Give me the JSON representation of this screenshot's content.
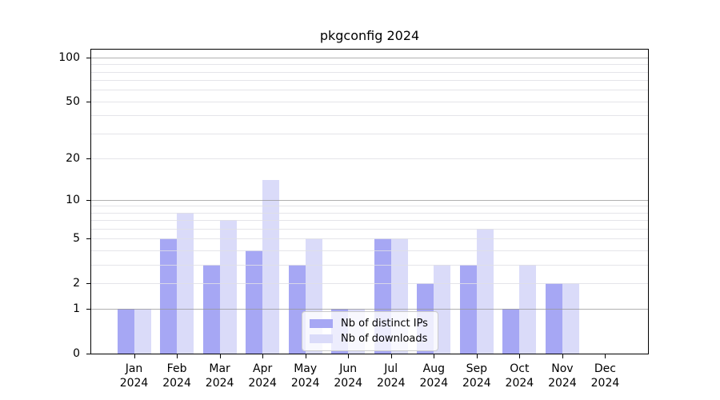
{
  "chart_data": {
    "type": "bar",
    "title": "pkgconfig 2024",
    "categories": [
      "Jan 2024",
      "Feb 2024",
      "Mar 2024",
      "Apr 2024",
      "May 2024",
      "Jun 2024",
      "Jul 2024",
      "Aug 2024",
      "Sep 2024",
      "Oct 2024",
      "Nov 2024",
      "Dec 2024"
    ],
    "x_tick_month": [
      "Jan",
      "Feb",
      "Mar",
      "Apr",
      "May",
      "Jun",
      "Jul",
      "Aug",
      "Sep",
      "Oct",
      "Nov",
      "Dec"
    ],
    "x_tick_year": "2024",
    "series": [
      {
        "name": "Nb of distinct IPs",
        "color": "#a6a7f4",
        "values": [
          1,
          5,
          3,
          4,
          3,
          1,
          5,
          2,
          3,
          1,
          2,
          0
        ]
      },
      {
        "name": "Nb of downloads",
        "color": "#dadbf9",
        "values": [
          1,
          8,
          7,
          14,
          5,
          1,
          5,
          3,
          6,
          3,
          2,
          0
        ]
      }
    ],
    "y_axis": {
      "scale": "log1p",
      "min": 0,
      "max": 113.3,
      "tick_labels": [
        100,
        50,
        20,
        10,
        5,
        2,
        1,
        0
      ],
      "major_gridlines": [
        1,
        10,
        100
      ],
      "minor_gridlines": [
        2,
        3,
        4,
        5,
        6,
        7,
        8,
        9,
        20,
        30,
        40,
        50,
        60,
        70,
        80,
        90
      ]
    },
    "xlabel": "",
    "ylabel": "",
    "grid": true,
    "legend": {
      "position": "lower center",
      "entries": [
        "Nb of distinct IPs",
        "Nb of downloads"
      ]
    }
  },
  "colors": {
    "background": "#ffffff",
    "bar_distinct_ips": "#a6a7f4",
    "bar_downloads": "#dadbf9",
    "major_grid": "#a8a8a8",
    "minor_grid": "#e6e6ec",
    "axis": "#000000",
    "legend_border": "#cbcbcb"
  }
}
